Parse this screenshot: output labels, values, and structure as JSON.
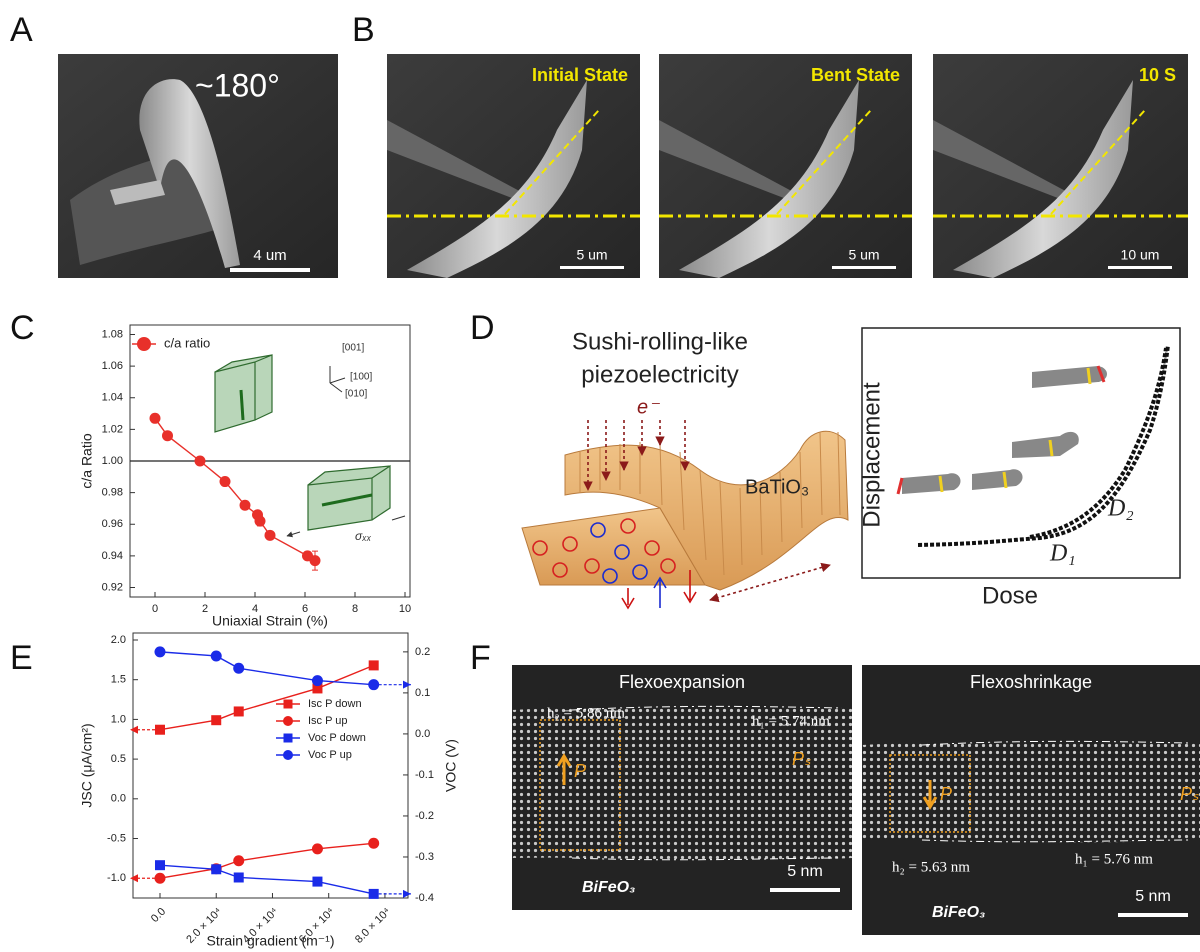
{
  "panel_labels": [
    "A",
    "B",
    "C",
    "D",
    "E",
    "F"
  ],
  "panel_a": {
    "angle": "~180°",
    "scale_bar": "4 um"
  },
  "panel_b": {
    "frames": [
      {
        "label": "Initial State",
        "scale_bar": "5 um"
      },
      {
        "label": "Bent State",
        "scale_bar": "5 um"
      },
      {
        "label": "10 S",
        "scale_bar": "10 um"
      }
    ]
  },
  "panel_c_annotations": [
    "[001]",
    "[100]",
    "[010]",
    "σₓₓ"
  ],
  "panel_d": {
    "title_lines": [
      "Sushi-rolling-like",
      "piezoelectricity"
    ],
    "beam_label": "e⁻",
    "material": "BaTiO₃",
    "x_label": "Dose",
    "y_label": "Displacement",
    "curve_labels": [
      "D₁",
      "D₂"
    ]
  },
  "panel_f": {
    "images": [
      {
        "title": "Flexoexpansion",
        "h_top": "h₂ = 5.86 nm",
        "h_side": "h₁ = 5.74 nm",
        "polarization": "P",
        "ps": "Pₛ",
        "material": "BiFeO₃",
        "scale_bar": "5 nm"
      },
      {
        "title": "Flexoshrinkage",
        "h_top": "h₂ = 5.63 nm",
        "h_side": "h₁ = 5.76 nm",
        "polarization": "P",
        "ps": "Pₛ",
        "material": "BiFeO₃",
        "scale_bar": "5 nm"
      }
    ]
  },
  "chart_data": [
    {
      "type": "line",
      "x_label": "Uniaxial Strain (%)",
      "y_label": "c/a Ratio",
      "x": [
        0,
        0.5,
        1.8,
        2.8,
        3.6,
        4.1,
        4.2,
        4.6,
        6.1,
        6.4
      ],
      "series": [
        {
          "name": "c/a ratio",
          "color": "#e8302a",
          "marker": "circle",
          "values": [
            1.027,
            1.016,
            1.0,
            0.987,
            0.972,
            0.966,
            0.962,
            0.953,
            0.94,
            0.937
          ],
          "errors": [
            0.001,
            0.001,
            0.001,
            0.002,
            0.002,
            0.002,
            0.003,
            0.002,
            0.002,
            0.006
          ]
        }
      ],
      "xlim": [
        -1,
        10.2
      ],
      "xticks": [
        0,
        2,
        4,
        6,
        8,
        10
      ],
      "ylim": [
        0.914,
        1.086
      ],
      "yticks": [
        0.92,
        0.94,
        0.96,
        0.98,
        {
          "value": 1,
          "label": "1.00"
        },
        1.02,
        1.04,
        1.06,
        1.08
      ],
      "reference_line": 1,
      "legend": "upper left"
    },
    {
      "type": "line",
      "x_label": "Strain gradient (m⁻¹)",
      "y_label": "JSC (μA/cm²)",
      "y2_label": "VOC (V)",
      "x": [
        0,
        20000,
        28000,
        56000,
        76000
      ],
      "series": [
        {
          "name": "Isc P down",
          "color": "#e8201c",
          "marker": "square",
          "values": [
            0.87,
            0.99,
            1.1,
            1.39,
            1.68
          ]
        },
        {
          "name": "Isc P up",
          "color": "#e8201c",
          "marker": "circle",
          "values": [
            -1.0,
            -0.88,
            -0.78,
            -0.63,
            -0.56
          ]
        },
        {
          "name": "Voc P down",
          "color": "#1a2be8",
          "marker": "square",
          "axis": "y2",
          "values": [
            -0.32,
            -0.33,
            -0.35,
            -0.36,
            -0.39
          ]
        },
        {
          "name": "Voc P up",
          "color": "#1a2be8",
          "marker": "circle",
          "axis": "y2",
          "values": [
            0.2,
            0.19,
            0.16,
            0.13,
            0.12
          ]
        }
      ],
      "xlim": [
        -9600,
        88200
      ],
      "xticks": [
        {
          "value": 0,
          "label": "0.0"
        },
        {
          "value": 20000,
          "label": "2.0 × 10⁴"
        },
        {
          "value": 40000,
          "label": "4.0 × 10⁴"
        },
        {
          "value": 60000,
          "label": "6.0 × 10⁴"
        },
        {
          "value": 80000,
          "label": "8.0 × 10⁴"
        }
      ],
      "ylim": [
        -1.249,
        2.088
      ],
      "yticks": [
        {
          "value": 2,
          "label": "2.0"
        },
        1.5,
        {
          "value": 1,
          "label": "1.0"
        },
        0.5,
        {
          "value": 0,
          "label": "0.0"
        },
        -0.5,
        {
          "value": -1,
          "label": "-1.0"
        }
      ],
      "y2lim": [
        -0.4,
        0.246
      ],
      "y2ticks": [
        0.2,
        0.1,
        {
          "value": 0,
          "label": "0.0"
        },
        -0.1,
        -0.2,
        -0.3,
        -0.4
      ],
      "legend": "center right"
    }
  ]
}
